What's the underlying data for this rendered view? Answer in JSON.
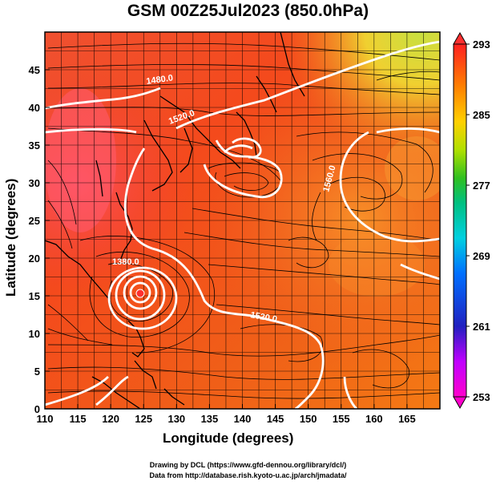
{
  "title": "GSM 00Z25Jul2023 (850.0hPa)",
  "axes": {
    "xlabel": "Longitude (degrees)",
    "ylabel": "Latitude  (degrees)",
    "xticks": [
      "110",
      "115",
      "120",
      "125",
      "130",
      "135",
      "140",
      "145",
      "150",
      "155",
      "160",
      "165"
    ],
    "yticks": [
      "0",
      "5",
      "10",
      "15",
      "20",
      "25",
      "30",
      "35",
      "40",
      "45"
    ],
    "xlim": [
      110,
      170
    ],
    "ylim": [
      0,
      50
    ]
  },
  "colorbar": {
    "ticks": [
      "293",
      "285",
      "277",
      "269",
      "261",
      "253"
    ],
    "range": [
      253,
      293
    ],
    "colors": [
      "#ff00cc",
      "#cc00ff",
      "#2020c0",
      "#0060ff",
      "#00c0ff",
      "#00e0a0",
      "#20c020",
      "#a0e000",
      "#ffe000",
      "#ff9000",
      "#ff5000",
      "#ff2020"
    ]
  },
  "contours": {
    "labels": [
      "1480.0",
      "1520.0",
      "1560.0",
      "1380.0",
      "1520.0"
    ]
  },
  "credits": {
    "line1": "Drawing by DCL (https://www.gfd-dennou.org/library/dcl/)",
    "line2": "Data from http://database.rish.kyoto-u.ac.jp/arch/jmadata/"
  }
}
